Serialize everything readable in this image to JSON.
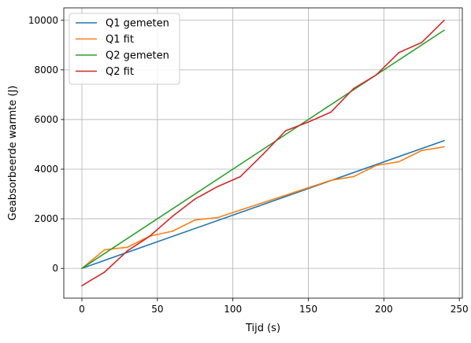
{
  "chart_data": {
    "type": "line",
    "xlabel": "Tijd (s)",
    "ylabel": "Geabsorbeerde warmte (J)",
    "xlim": [
      -12,
      252
    ],
    "ylim": [
      -1200,
      10500
    ],
    "xticks": [
      0,
      50,
      100,
      150,
      200,
      250
    ],
    "yticks": [
      0,
      2000,
      4000,
      6000,
      8000,
      10000
    ],
    "grid": true,
    "legend_position": "top-left",
    "series": [
      {
        "name": "Q1 gemeten",
        "color": "#1f77b4",
        "x": [
          0,
          240
        ],
        "y": [
          0,
          5150
        ]
      },
      {
        "name": "Q1 fit",
        "color": "#ff7f0e",
        "x": [
          0,
          15,
          30,
          45,
          60,
          75,
          90,
          105,
          120,
          135,
          150,
          165,
          180,
          195,
          210,
          225,
          240
        ],
        "y": [
          0,
          750,
          850,
          1300,
          1500,
          1950,
          2050,
          2350,
          2650,
          2950,
          3250,
          3550,
          3700,
          4150,
          4300,
          4750,
          4900
        ]
      },
      {
        "name": "Q2 gemeten",
        "color": "#2ca02c",
        "x": [
          0,
          240
        ],
        "y": [
          0,
          9600
        ]
      },
      {
        "name": "Q2 fit",
        "color": "#d62728",
        "x": [
          0,
          15,
          30,
          45,
          60,
          75,
          90,
          105,
          120,
          135,
          150,
          165,
          180,
          195,
          210,
          225,
          240
        ],
        "y": [
          -700,
          -150,
          700,
          1300,
          2100,
          2800,
          3300,
          3700,
          4600,
          5550,
          5900,
          6300,
          7250,
          7800,
          8700,
          9100,
          10000
        ]
      }
    ]
  }
}
